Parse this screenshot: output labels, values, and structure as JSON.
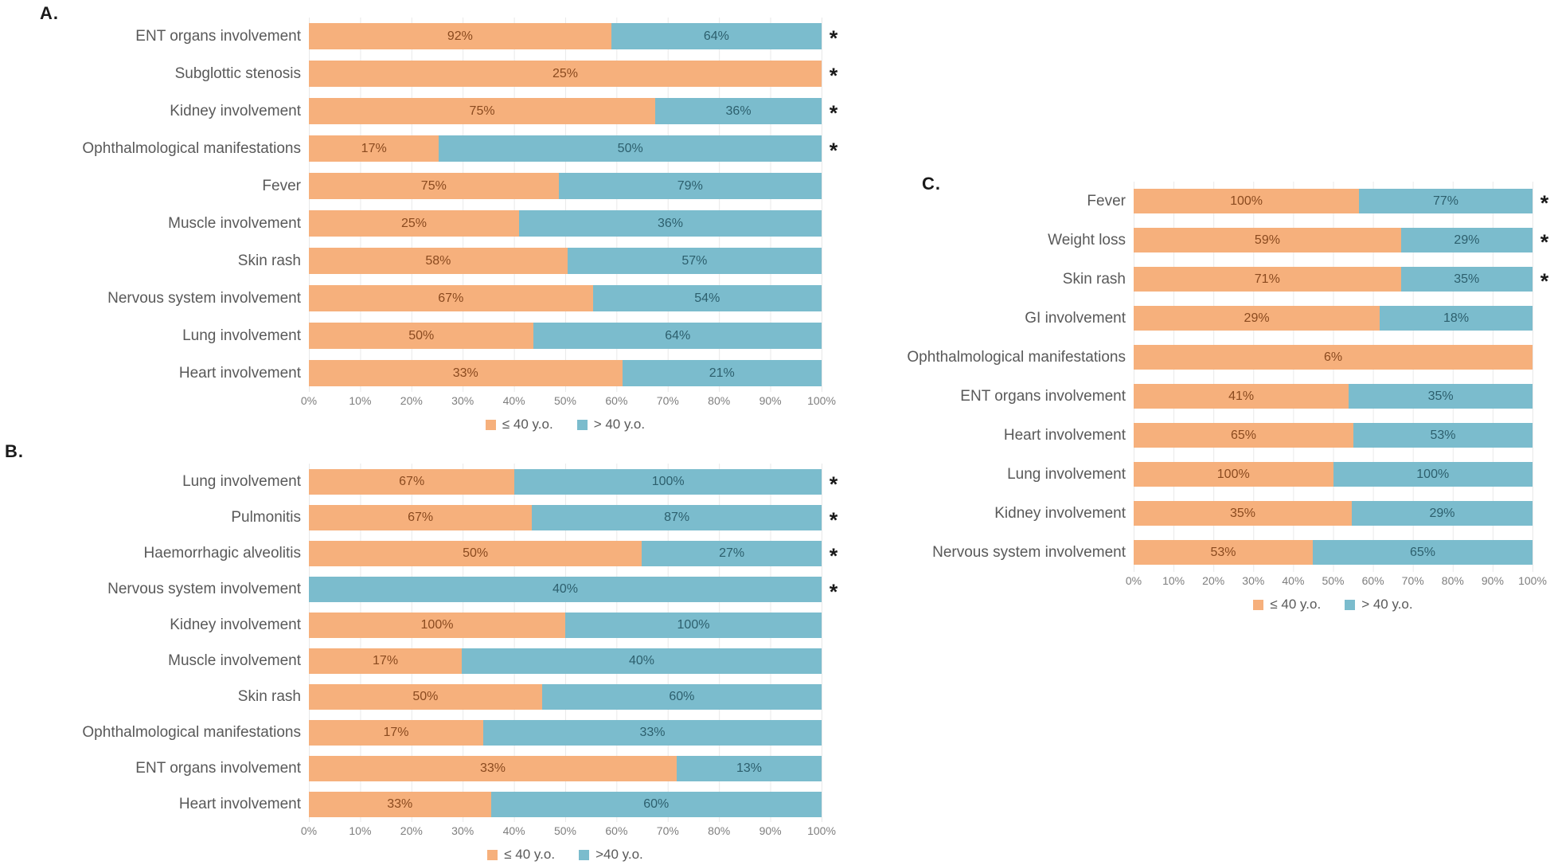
{
  "colors": {
    "young_fill": "#F6B07C",
    "old_fill": "#7BBCCD",
    "young_value_text": "#8A4A1F",
    "old_value_text": "#2D5F6D",
    "category_text": "#595959",
    "tick_text": "#7E7E7E",
    "panel_letter_text": "#1A1A1A",
    "gridline": "#E9E9E9"
  },
  "significance_marker": "*",
  "chart_data": [
    {
      "type": "bar",
      "orientation": "horizontal",
      "stacking": "100%",
      "panel": "A.",
      "categories": [
        "ENT organs involvement",
        "Subglottic stenosis",
        "Kidney involvement",
        "Ophthalmological manifestations",
        "Fever",
        "Muscle involvement",
        "Skin rash",
        "Nervous system involvement",
        "Lung involvement",
        "Heart involvement"
      ],
      "series": [
        {
          "name": "≤ 40 y.o.",
          "color": "#F6B07C",
          "values": [
            92,
            25,
            75,
            17,
            75,
            25,
            58,
            67,
            50,
            33
          ]
        },
        {
          "name": "> 40 y.o.",
          "color": "#7BBCCD",
          "values": [
            64,
            null,
            36,
            50,
            79,
            36,
            57,
            54,
            64,
            21
          ]
        }
      ],
      "value_label_format": "{v}%",
      "significant": [
        true,
        true,
        true,
        true,
        false,
        false,
        false,
        false,
        false,
        false
      ],
      "xticks": [
        "0%",
        "10%",
        "20%",
        "30%",
        "40%",
        "50%",
        "60%",
        "70%",
        "80%",
        "90%",
        "100%"
      ],
      "xlim": [
        0,
        100
      ],
      "grid": true,
      "legend_position": "bottom"
    },
    {
      "type": "bar",
      "orientation": "horizontal",
      "stacking": "100%",
      "panel": "B.",
      "categories": [
        "Lung involvement",
        "Pulmonitis",
        "Haemorrhagic alveolitis",
        "Nervous system involvement",
        "Kidney involvement",
        "Muscle involvement",
        "Skin rash",
        "Ophthalmological manifestations",
        "ENT organs involvement",
        "Heart involvement"
      ],
      "series": [
        {
          "name": "≤ 40 y.o.",
          "color": "#F6B07C",
          "values": [
            67,
            67,
            50,
            null,
            100,
            17,
            50,
            17,
            33,
            33
          ]
        },
        {
          "name": ">40 y.o.",
          "color": "#7BBCCD",
          "values": [
            100,
            87,
            27,
            40,
            100,
            40,
            60,
            33,
            13,
            60
          ]
        }
      ],
      "value_label_format": "{v}%",
      "significant": [
        true,
        true,
        true,
        true,
        false,
        false,
        false,
        false,
        false,
        false
      ],
      "xticks": [
        "0%",
        "10%",
        "20%",
        "30%",
        "40%",
        "50%",
        "60%",
        "70%",
        "80%",
        "90%",
        "100%"
      ],
      "xlim": [
        0,
        100
      ],
      "grid": true,
      "legend_position": "bottom"
    },
    {
      "type": "bar",
      "orientation": "horizontal",
      "stacking": "100%",
      "panel": "C.",
      "categories": [
        "Fever",
        "Weight loss",
        "Skin rash",
        "GI involvement",
        "Ophthalmological manifestations",
        "ENT organs involvement",
        "Heart involvement",
        "Lung involvement",
        "Kidney involvement",
        "Nervous system involvement"
      ],
      "series": [
        {
          "name": "≤ 40 y.o.",
          "color": "#F6B07C",
          "values": [
            100,
            59,
            71,
            29,
            6,
            41,
            65,
            100,
            35,
            53
          ]
        },
        {
          "name": "> 40 y.o.",
          "color": "#7BBCCD",
          "values": [
            77,
            29,
            35,
            18,
            null,
            35,
            53,
            100,
            29,
            65
          ]
        }
      ],
      "value_label_format": "{v}%",
      "significant": [
        true,
        true,
        true,
        false,
        false,
        false,
        false,
        false,
        false,
        false
      ],
      "xticks": [
        "0%",
        "10%",
        "20%",
        "30%",
        "40%",
        "50%",
        "60%",
        "70%",
        "80%",
        "90%",
        "100%"
      ],
      "xlim": [
        0,
        100
      ],
      "grid": true,
      "legend_position": "bottom"
    }
  ]
}
